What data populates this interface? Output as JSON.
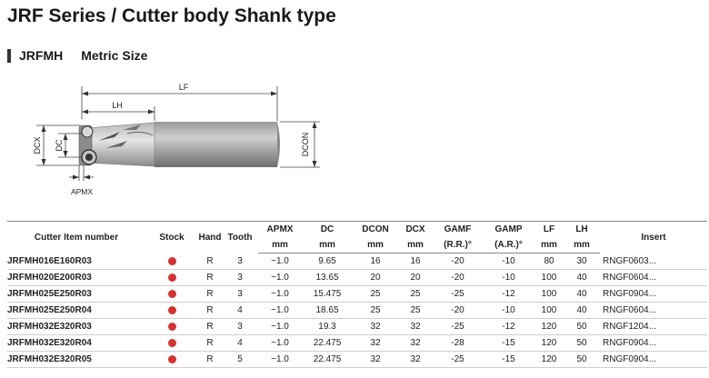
{
  "title": "JRF Series / Cutter body Shank type",
  "subtitle": {
    "code": "JRFMH",
    "label": "Metric Size"
  },
  "diagram": {
    "lf": "LF",
    "lh": "LH",
    "dcx": "DCX",
    "dc": "DC",
    "dcon": "DCON",
    "apmx": "APMX"
  },
  "table": {
    "headers": {
      "item": "Cutter Item number",
      "stock": "Stock",
      "hand": "Hand",
      "tooth": "Tooth",
      "apmx": "APMX",
      "dc": "DC",
      "dcon": "DCON",
      "dcx": "DCX",
      "gamf": "GAMF",
      "gamp": "GAMP",
      "lf": "LF",
      "lh": "LH",
      "insert": "Insert",
      "u_apmx": "mm",
      "u_dc": "mm",
      "u_dcon": "mm",
      "u_dcx": "mm",
      "u_gamf": "(R.R.)°",
      "u_gamp": "(A.R.)°",
      "u_lf": "mm",
      "u_lh": "mm"
    },
    "stock_color": "#d6312f",
    "rows": [
      {
        "item": "JRFMH016E160R03",
        "hand": "R",
        "tooth": "3",
        "apmx": "~1.0",
        "dc": "9.65",
        "dcon": "16",
        "dcx": "16",
        "gamf": "-20",
        "gamp": "-10",
        "lf": "80",
        "lh": "30",
        "insert": "RNGF0603..."
      },
      {
        "item": "JRFMH020E200R03",
        "hand": "R",
        "tooth": "3",
        "apmx": "~1.0",
        "dc": "13.65",
        "dcon": "20",
        "dcx": "20",
        "gamf": "-20",
        "gamp": "-10",
        "lf": "100",
        "lh": "40",
        "insert": "RNGF0604..."
      },
      {
        "item": "JRFMH025E250R03",
        "hand": "R",
        "tooth": "3",
        "apmx": "~1.0",
        "dc": "15.475",
        "dcon": "25",
        "dcx": "25",
        "gamf": "-25",
        "gamp": "-12",
        "lf": "100",
        "lh": "40",
        "insert": "RNGF0904..."
      },
      {
        "item": "JRFMH025E250R04",
        "hand": "R",
        "tooth": "4",
        "apmx": "~1.0",
        "dc": "18.65",
        "dcon": "25",
        "dcx": "25",
        "gamf": "-20",
        "gamp": "-10",
        "lf": "100",
        "lh": "40",
        "insert": "RNGF0604..."
      },
      {
        "item": "JRFMH032E320R03",
        "hand": "R",
        "tooth": "3",
        "apmx": "~1.0",
        "dc": "19.3",
        "dcon": "32",
        "dcx": "32",
        "gamf": "-25",
        "gamp": "-12",
        "lf": "120",
        "lh": "50",
        "insert": "RNGF1204..."
      },
      {
        "item": "JRFMH032E320R04",
        "hand": "R",
        "tooth": "4",
        "apmx": "~1.0",
        "dc": "22.475",
        "dcon": "32",
        "dcx": "32",
        "gamf": "-28",
        "gamp": "-15",
        "lf": "120",
        "lh": "50",
        "insert": "RNGF0904..."
      },
      {
        "item": "JRFMH032E320R05",
        "hand": "R",
        "tooth": "5",
        "apmx": "~1.0",
        "dc": "22.475",
        "dcon": "32",
        "dcx": "32",
        "gamf": "-25",
        "gamp": "-15",
        "lf": "120",
        "lh": "50",
        "insert": "RNGF0904..."
      }
    ]
  }
}
